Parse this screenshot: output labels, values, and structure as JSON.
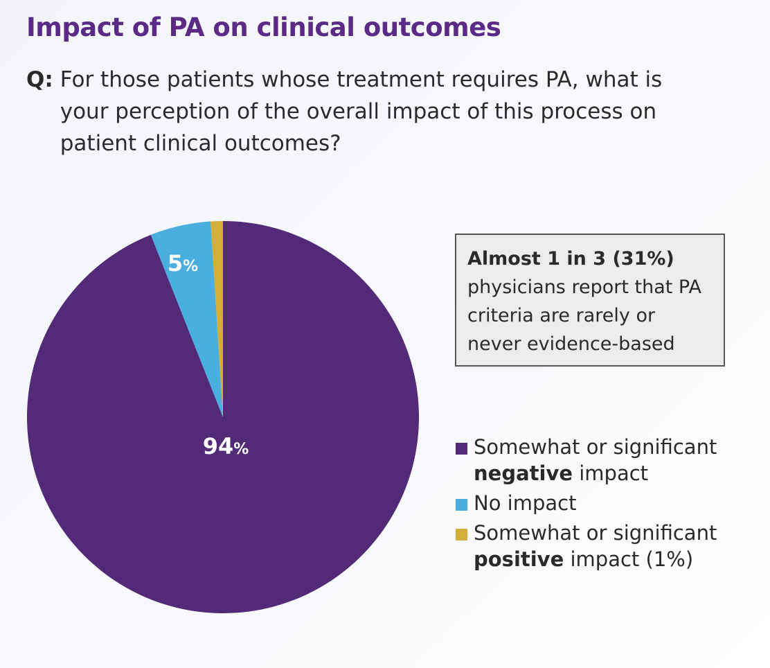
{
  "title": "Impact of PA on clinical outcomes",
  "question": {
    "prefix": "Q:",
    "text": "For those patients whose treatment requires PA, what is your perception of the overall impact of this process on patient clinical outcomes?"
  },
  "callout": {
    "bold": "Almost 1 in 3 (31%)",
    "text": "physicians report that PA criteria are rarely or never evidence-based"
  },
  "chart_data": {
    "type": "pie",
    "start_angle": "12 o'clock",
    "direction": "clockwise",
    "slices": [
      {
        "key": "negative",
        "value": 94,
        "label_num": "94",
        "label_pct": "%",
        "color": "#522a77"
      },
      {
        "key": "none",
        "value": 5,
        "label_num": "5",
        "label_pct": "%",
        "color": "#4aaedf"
      },
      {
        "key": "positive",
        "value": 1,
        "color": "#d4ae3b"
      }
    ],
    "legend": [
      {
        "pre": "Somewhat or significant ",
        "bold": "negative",
        "post": " impact",
        "color": "#522a77"
      },
      {
        "pre": "No impact",
        "bold": "",
        "post": "",
        "color": "#4aaedf"
      },
      {
        "pre": "Somewhat or significant ",
        "bold": "positive",
        "post": " impact (1%)",
        "color": "#d4ae3b"
      }
    ],
    "legend_position": "right"
  }
}
